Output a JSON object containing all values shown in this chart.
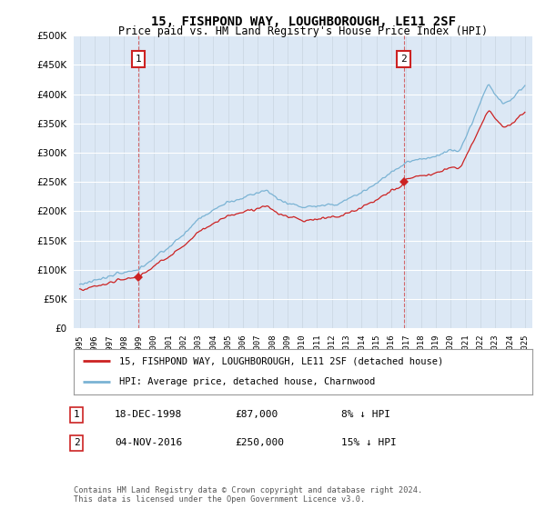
{
  "title": "15, FISHPOND WAY, LOUGHBOROUGH, LE11 2SF",
  "subtitle": "Price paid vs. HM Land Registry's House Price Index (HPI)",
  "legend_line1": "15, FISHPOND WAY, LOUGHBOROUGH, LE11 2SF (detached house)",
  "legend_line2": "HPI: Average price, detached house, Charnwood",
  "annotation1_label": "1",
  "annotation1_date": "18-DEC-1998",
  "annotation1_price": "£87,000",
  "annotation1_note": "8% ↓ HPI",
  "annotation2_label": "2",
  "annotation2_date": "04-NOV-2016",
  "annotation2_price": "£250,000",
  "annotation2_note": "15% ↓ HPI",
  "footer": "Contains HM Land Registry data © Crown copyright and database right 2024.\nThis data is licensed under the Open Government Licence v3.0.",
  "hpi_color": "#7ab3d4",
  "price_color": "#cc2222",
  "annotation_color": "#cc2222",
  "background_plot": "#dce8f5",
  "background_fig": "#ffffff",
  "ylim": [
    0,
    500000
  ],
  "yticks": [
    0,
    50000,
    100000,
    150000,
    200000,
    250000,
    300000,
    350000,
    400000,
    450000,
    500000
  ],
  "xlim_start": 1994.6,
  "xlim_end": 2025.5,
  "sale1_year": 1998.96,
  "sale1_price": 87000,
  "sale2_year": 2016.84,
  "sale2_price": 250000
}
